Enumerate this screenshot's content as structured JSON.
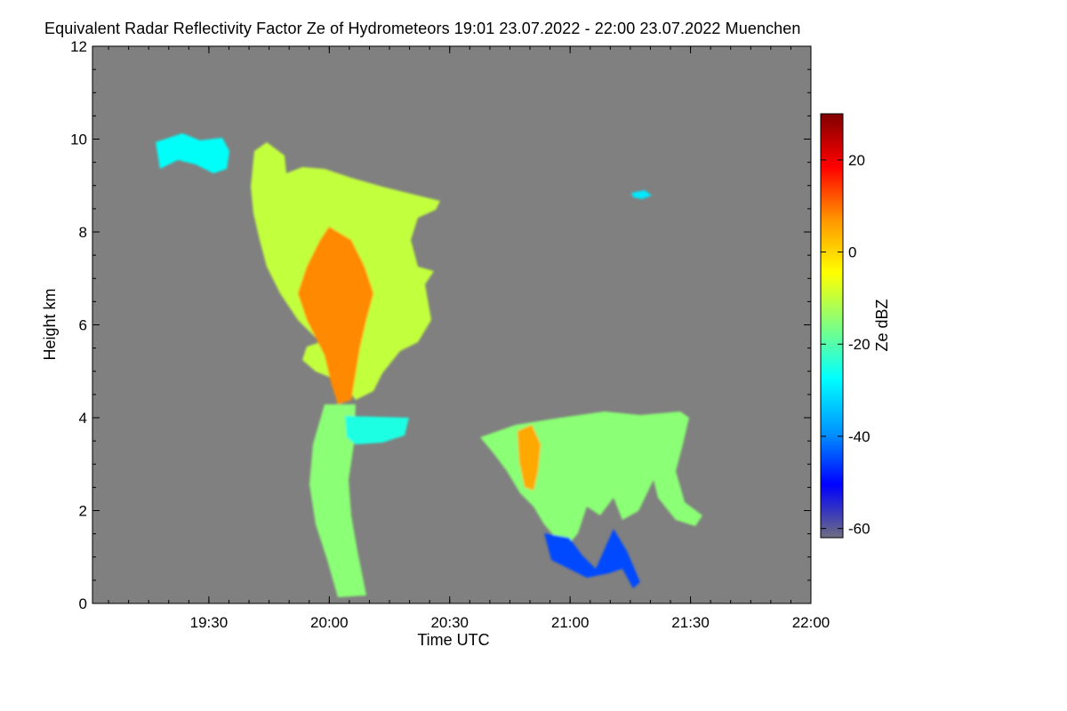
{
  "chart_data": {
    "type": "heatmap",
    "title": "Equivalent Radar Reflectivity Factor Ze of Hydrometeors   19:01 23.07.2022 - 22:00 23.07.2022 Muenchen",
    "xlabel": "Time UTC",
    "ylabel": "Height km",
    "colorbar_label": "Ze dBZ",
    "x_range_minutes_utc": [
      1141,
      1320
    ],
    "x_ticks": [
      {
        "minute": 1170,
        "label": "19:30"
      },
      {
        "minute": 1200,
        "label": "20:00"
      },
      {
        "minute": 1230,
        "label": "20:30"
      },
      {
        "minute": 1260,
        "label": "21:00"
      },
      {
        "minute": 1290,
        "label": "21:30"
      },
      {
        "minute": 1320,
        "label": "22:00"
      }
    ],
    "y_range_km": [
      0,
      12
    ],
    "y_ticks": [
      0,
      2,
      4,
      6,
      8,
      10,
      12
    ],
    "colorbar_range_dbz": [
      -62,
      30
    ],
    "colorbar_ticks": [
      20,
      0,
      -20,
      -40,
      -60
    ],
    "no_data_color": "#808080",
    "colormap": [
      "#6e6e80",
      "#0000ff",
      "#0096ff",
      "#00ffff",
      "#80ff80",
      "#ffff00",
      "#ff9600",
      "#ff0000",
      "#800000"
    ],
    "echoes": [
      {
        "name": "upper-thin-layer",
        "t": [
          1157,
          1172
        ],
        "h": [
          9.3,
          10.2
        ],
        "dbz": -27
      },
      {
        "name": "convective-anvil",
        "t": [
          1183,
          1222
        ],
        "h": [
          4.5,
          9.2
        ],
        "dbz": -10
      },
      {
        "name": "convective-core",
        "t": [
          1196,
          1209
        ],
        "h": [
          4.5,
          8.5
        ],
        "dbz": 8
      },
      {
        "name": "precipitation-shaft",
        "t": [
          1195,
          1210
        ],
        "h": [
          0,
          4.5
        ],
        "dbz": -15
      },
      {
        "name": "mid-level-layer",
        "t": [
          1204,
          1220
        ],
        "h": [
          3.6,
          4.1
        ],
        "dbz": -25
      },
      {
        "name": "stratiform-cells",
        "t": [
          1238,
          1294
        ],
        "h": [
          1.8,
          4.1
        ],
        "dbz": -15
      },
      {
        "name": "cell-core",
        "t": [
          1250,
          1255
        ],
        "h": [
          2.3,
          3.8
        ],
        "dbz": 5
      },
      {
        "name": "fall-streaks",
        "t": [
          1253,
          1277
        ],
        "h": [
          0.3,
          2.0
        ],
        "dbz": -45
      },
      {
        "name": "small-echo",
        "t": [
          1275,
          1278
        ],
        "h": [
          8.7,
          8.9
        ],
        "dbz": -30
      }
    ]
  }
}
